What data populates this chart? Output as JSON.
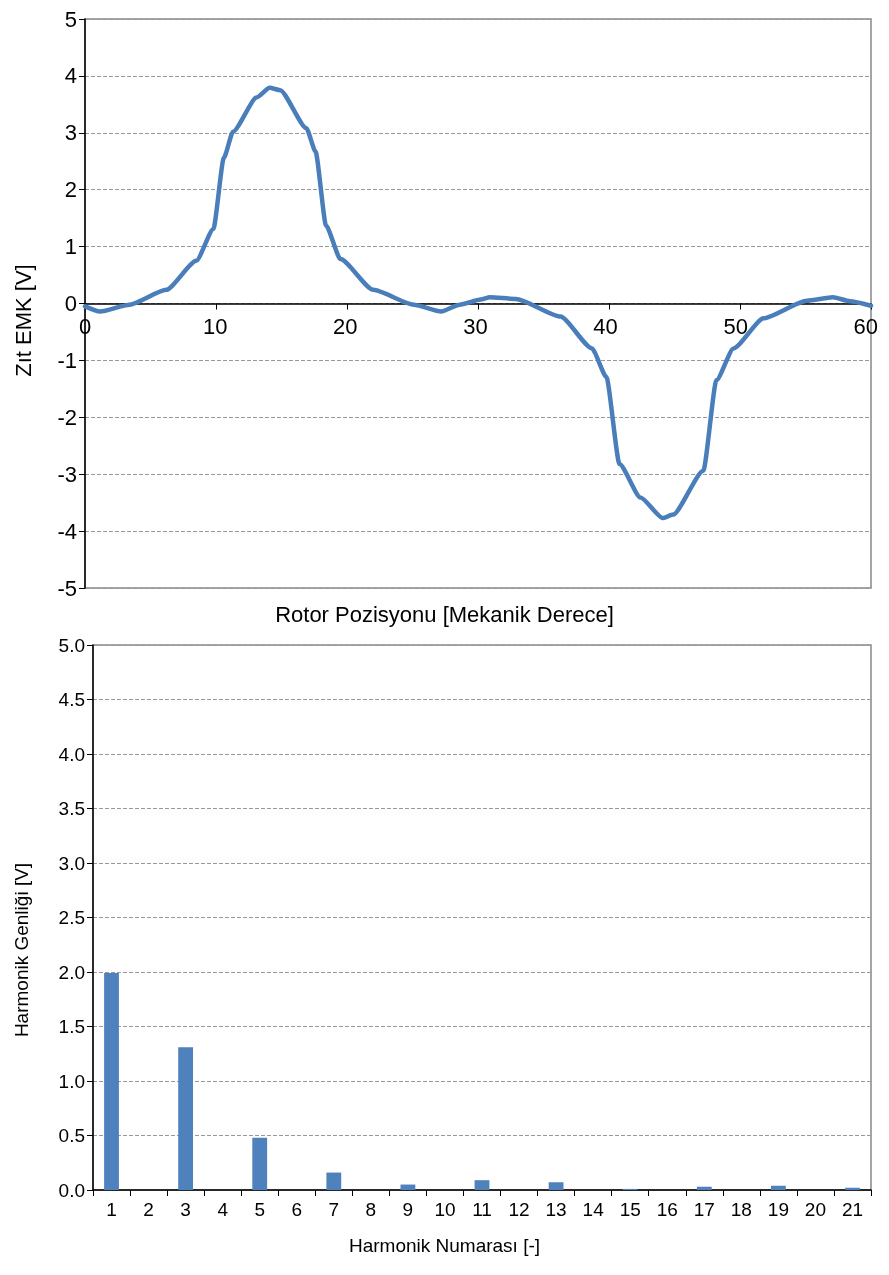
{
  "chart_data": [
    {
      "type": "line",
      "xlabel": "Rotor Pozisyonu [Mekanik Derece]",
      "ylabel": "Zıt EMK [V]",
      "x": [
        0,
        1.15,
        3.4,
        6.2,
        8.5,
        9.8,
        10.6,
        11.3,
        13.1,
        14.1,
        14.9,
        16.9,
        17.6,
        18.4,
        19.5,
        22.0,
        25.1,
        27.2,
        28.6,
        30.2,
        30.9,
        32.9,
        36.3,
        38.7,
        39.8,
        40.8,
        42.4,
        44.1,
        44.9,
        47.2,
        48.2,
        49.5,
        51.8,
        55.1,
        57.1,
        58.4,
        60
      ],
      "series": [
        {
          "color": "#4a7ebb",
          "values": [
            -0.05,
            -0.14,
            -0.02,
            0.24,
            0.75,
            1.31,
            2.56,
            3.02,
            3.62,
            3.79,
            3.75,
            3.08,
            2.67,
            1.37,
            0.78,
            0.24,
            -0.02,
            -0.14,
            -0.02,
            0.07,
            0.11,
            0.08,
            -0.23,
            -0.79,
            -1.29,
            -2.82,
            -3.41,
            -3.77,
            -3.71,
            -2.94,
            -1.35,
            -0.79,
            -0.26,
            0.05,
            0.11,
            0.04,
            -0.04
          ]
        }
      ],
      "xlim": [
        0,
        60
      ],
      "xticks": [
        0,
        10,
        20,
        30,
        40,
        50,
        60
      ],
      "ylim": [
        -5,
        5
      ],
      "yticks": [
        -5,
        -4,
        -3,
        -2,
        -1,
        0,
        1,
        2,
        3,
        4,
        5
      ],
      "grid": "y",
      "marker": "none",
      "line_style": "solid"
    },
    {
      "type": "bar",
      "xlabel": "Harmonik Numarası [-]",
      "ylabel": "Harmonik Genliği [V]",
      "categories": [
        "1",
        "2",
        "3",
        "4",
        "5",
        "6",
        "7",
        "8",
        "9",
        "10",
        "11",
        "12",
        "13",
        "14",
        "15",
        "16",
        "17",
        "18",
        "19",
        "20",
        "21"
      ],
      "series": [
        {
          "color": "#4f81bd",
          "values": [
            1.99,
            0,
            1.31,
            0,
            0.48,
            0,
            0.16,
            0,
            0.05,
            0,
            0.09,
            0,
            0.07,
            0,
            0.01,
            0,
            0.03,
            0,
            0.04,
            0,
            0.02
          ]
        }
      ],
      "ylim": [
        0,
        5
      ],
      "yticks": [
        {
          "value": 0,
          "label": "0.0"
        },
        {
          "value": 0.5,
          "label": "0.5"
        },
        {
          "value": 1,
          "label": "1.0"
        },
        {
          "value": 1.5,
          "label": "1.5"
        },
        {
          "value": 2,
          "label": "2.0"
        },
        {
          "value": 2.5,
          "label": "2.5"
        },
        {
          "value": 3,
          "label": "3.0"
        },
        {
          "value": 3.5,
          "label": "3.5"
        },
        {
          "value": 4,
          "label": "4.0"
        },
        {
          "value": 4.5,
          "label": "4.5"
        },
        {
          "value": 5,
          "label": "5.0"
        }
      ],
      "grid": "y"
    }
  ]
}
